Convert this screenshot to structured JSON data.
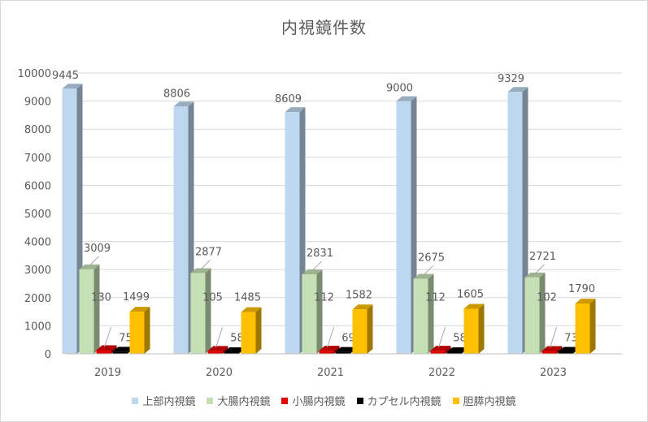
{
  "chart_data": {
    "type": "bar",
    "title": "内視鏡件数",
    "categories": [
      "2019",
      "2020",
      "2021",
      "2022",
      "2023"
    ],
    "ylim": [
      0,
      10000
    ],
    "yticks": [
      "0",
      "1000",
      "2000",
      "3000",
      "4000",
      "5000",
      "6000",
      "7000",
      "8000",
      "9000",
      "10000"
    ],
    "grid": true,
    "legend_position": "bottom",
    "series": [
      {
        "name": "上部内視鏡",
        "color": "#bdd7ee",
        "values": [
          9445,
          8806,
          8609,
          9000,
          9329
        ]
      },
      {
        "name": "大腸内視鏡",
        "color": "#c5e0b4",
        "values": [
          3009,
          2877,
          2831,
          2675,
          2721
        ]
      },
      {
        "name": "小腸内視鏡",
        "color": "#e00000",
        "values": [
          130,
          105,
          112,
          112,
          102
        ]
      },
      {
        "name": "カプセル内視鏡",
        "color": "#000000",
        "values": [
          75,
          58,
          69,
          58,
          73
        ]
      },
      {
        "name": "胆膵内視鏡",
        "color": "#ffc000",
        "values": [
          1499,
          1485,
          1582,
          1605,
          1790
        ]
      }
    ]
  }
}
